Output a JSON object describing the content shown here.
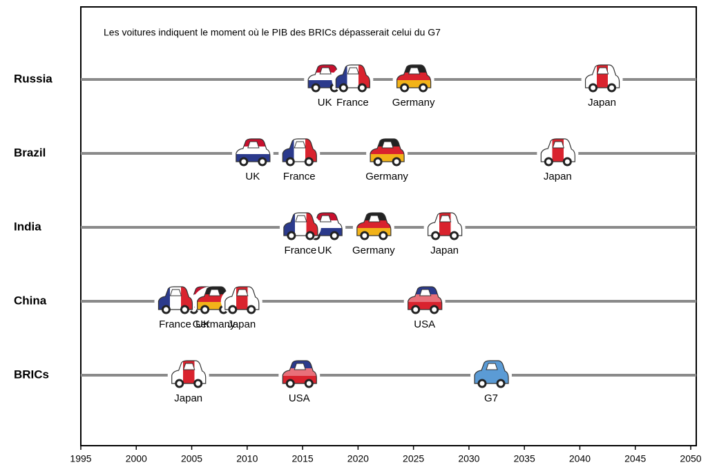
{
  "chart_data": {
    "type": "timeline",
    "annotation": "Les voitures indiquent le moment où le PIB  des BRICs  dépasserait  celui  du G7",
    "categories": [
      "Russia",
      "Brazil",
      "India",
      "China",
      "BRICs"
    ],
    "xlim": [
      1995,
      2050
    ],
    "xticks": [
      1995,
      2000,
      2005,
      2010,
      2015,
      2020,
      2025,
      2030,
      2035,
      2040,
      2045,
      2050
    ],
    "series": [
      {
        "name": "UK",
        "colors": [
          "#c8102e",
          "#ffffff",
          "#2b3a8c"
        ],
        "stripes": "horizontal",
        "values": [
          2017,
          2010.5,
          2017,
          2006,
          null
        ]
      },
      {
        "name": "France",
        "colors": [
          "#2b3a8c",
          "#ffffff",
          "#d9232e"
        ],
        "stripes": "vertical",
        "values": [
          2019.5,
          2014.7,
          2014.8,
          2003.5,
          null
        ]
      },
      {
        "name": "Germany",
        "colors": [
          "#222222",
          "#d9232e",
          "#f2b319"
        ],
        "stripes": "horizontal",
        "values": [
          2025,
          2022.6,
          2021.4,
          2007,
          null
        ]
      },
      {
        "name": "Japan",
        "colors": [
          "#ffffff",
          "#d9232e",
          "#ffffff"
        ],
        "stripes": "vertical",
        "values": [
          2042,
          2038,
          2027.8,
          2009.5,
          2004.7
        ]
      },
      {
        "name": "USA",
        "colors": [
          "#2b3a8c",
          "#e8707a",
          "#d9232e"
        ],
        "stripes": "horizontal",
        "values": [
          null,
          null,
          null,
          2026,
          2014.7
        ]
      },
      {
        "name": "G7",
        "colors": [
          "#5b9bd5",
          "#5b9bd5",
          "#5b9bd5"
        ],
        "stripes": "horizontal",
        "values": [
          null,
          null,
          null,
          null,
          2032
        ]
      }
    ]
  }
}
